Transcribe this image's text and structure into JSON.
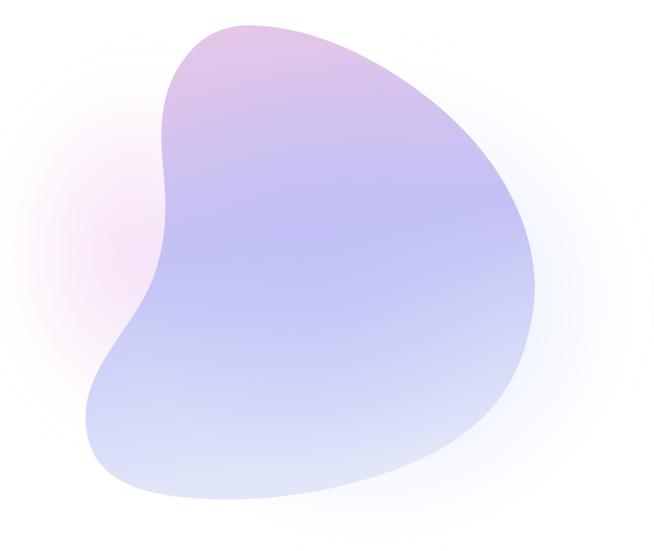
{
  "background": "#ffffff",
  "blob": {
    "colors": {
      "top": "#eac8e6",
      "upper": "#d6c3ee",
      "center": "#c3c1f6",
      "lower": "#d2d8f8",
      "bottom": "#e2e6f9"
    },
    "glow": {
      "pink": "#f6d8f4",
      "blue": "#d3e0fb"
    }
  }
}
